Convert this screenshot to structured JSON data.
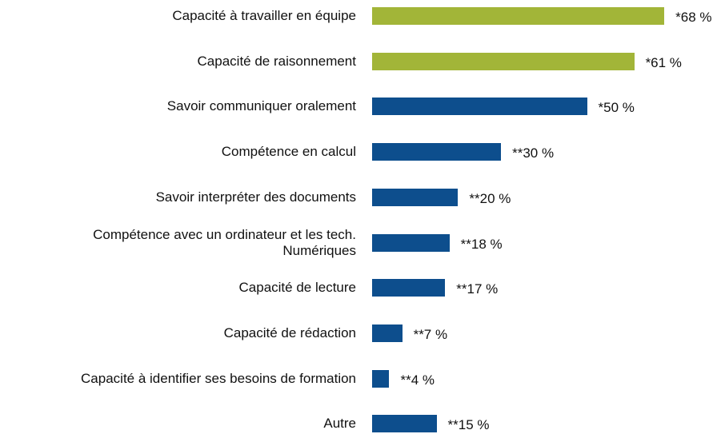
{
  "chart_data": {
    "type": "bar",
    "orientation": "horizontal",
    "categories": [
      "Capacité à travailler en équipe",
      "Capacité de raisonnement",
      "Savoir communiquer oralement",
      "Compétence en calcul",
      "Savoir interpréter des documents",
      "Compétence avec un ordinateur et les tech.\nNumériques",
      "Capacité de lecture",
      "Capacité de rédaction",
      "Capacité à identifier ses besoins de formation",
      "Autre"
    ],
    "values": [
      68,
      61,
      50,
      30,
      20,
      18,
      17,
      7,
      4,
      15
    ],
    "value_labels": [
      "*68 %",
      "*61 %",
      "*50 %",
      "**30 %",
      "**20 %",
      "**18 %",
      "**17 %",
      "**7 %",
      "**4 %",
      "**15 %"
    ],
    "colors": [
      "#a2b538",
      "#a2b538",
      "#0d4e8d",
      "#0d4e8d",
      "#0d4e8d",
      "#0d4e8d",
      "#0d4e8d",
      "#0d4e8d",
      "#0d4e8d",
      "#0d4e8d"
    ]
  }
}
